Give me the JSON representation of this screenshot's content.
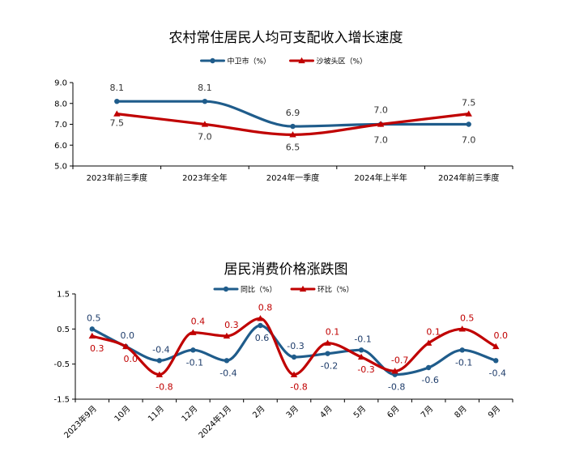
{
  "chart_data": [
    {
      "type": "line",
      "title": "农村常住居民人均可支配收入增长速度",
      "categories": [
        "2023年前三季度",
        "2023年全年",
        "2024年一季度",
        "2024年上半年",
        "2024年前三季度"
      ],
      "series": [
        {
          "name": "中卫市（%）",
          "values": [
            8.1,
            8.1,
            6.9,
            7.0,
            7.0
          ],
          "color": "#1f5c8b",
          "marker": "circle"
        },
        {
          "name": "沙坡头区（%）",
          "values": [
            7.5,
            7.0,
            6.5,
            7.0,
            7.5
          ],
          "color": "#c00000",
          "marker": "triangle"
        }
      ],
      "y_ticks": [
        "9.0",
        "8.0",
        "7.0",
        "6.0",
        "5.0"
      ],
      "ylim": [
        5.0,
        9.0
      ],
      "legend_position": "top",
      "grid": false
    },
    {
      "type": "line",
      "title": "居民消费价格涨跌图",
      "categories": [
        "2023年9月",
        "10月",
        "11月",
        "12月",
        "2024年1月",
        "2月",
        "3月",
        "4月",
        "5月",
        "6月",
        "7月",
        "8月",
        "9月"
      ],
      "series": [
        {
          "name": "同比（%）",
          "values": [
            0.5,
            0.0,
            -0.4,
            -0.1,
            -0.4,
            0.6,
            -0.3,
            -0.2,
            -0.1,
            -0.8,
            -0.6,
            -0.1,
            -0.4
          ],
          "color": "#1f5c8b",
          "marker": "circle"
        },
        {
          "name": "环比（%）",
          "values": [
            0.3,
            0.0,
            -0.8,
            0.4,
            0.3,
            0.8,
            -0.8,
            0.1,
            -0.3,
            -0.7,
            0.1,
            0.5,
            0.0
          ],
          "color": "#c00000",
          "marker": "triangle"
        }
      ],
      "y_ticks": [
        "1.5",
        "0.5",
        "-0.5",
        "-1.5"
      ],
      "ylim": [
        -1.5,
        1.5
      ],
      "legend_position": "top",
      "grid": false
    }
  ]
}
